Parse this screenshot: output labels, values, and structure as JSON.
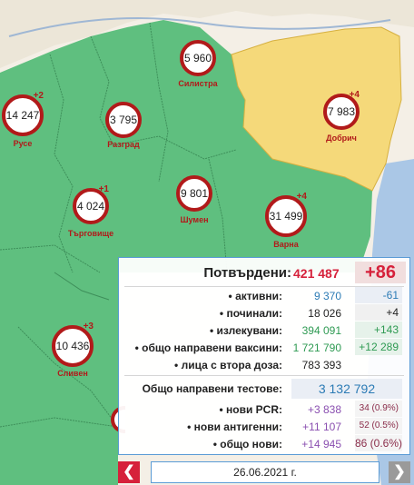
{
  "regions": [
    {
      "name": "Силистра",
      "count": "5 960",
      "delta": ""
    },
    {
      "name": "Русе",
      "count": "14 247",
      "delta": "+2"
    },
    {
      "name": "Разград",
      "count": "3 795",
      "delta": ""
    },
    {
      "name": "Добрич",
      "count": "7 983",
      "delta": "+4"
    },
    {
      "name": "Търговище",
      "count": "4 024",
      "delta": "+1"
    },
    {
      "name": "Шумен",
      "count": "9 801",
      "delta": ""
    },
    {
      "name": "Варна",
      "count": "31 499",
      "delta": "+4"
    },
    {
      "name": "Сливен",
      "count": "10 436",
      "delta": "+3"
    }
  ],
  "panel": {
    "confirmed_label": "Потвърдени:",
    "confirmed_value": "421 487",
    "confirmed_delta": "+86",
    "rows": [
      {
        "label": "• активни:",
        "value": "9 370",
        "delta": "-61"
      },
      {
        "label": "• починали:",
        "value": "18 026",
        "delta": "+4"
      },
      {
        "label": "• излекувани:",
        "value": "394 091",
        "delta": "+143"
      },
      {
        "label": "• общо направени ваксини:",
        "value": "1 721 790",
        "delta": "+12 289"
      },
      {
        "label": "• лица с втора доза:",
        "value": "783 393",
        "delta": ""
      }
    ],
    "tests_label": "Общо направени тестове:",
    "tests_value": "3 132 792",
    "test_rows": [
      {
        "label": "• нови PCR:",
        "value": "+3 838",
        "delta": "34 (0.9%)"
      },
      {
        "label": "• нови антигенни:",
        "value": "+11 107",
        "delta": "52 (0.5%)"
      },
      {
        "label": "• общо нови:",
        "value": "+14 945",
        "delta": "86 (0.6%)"
      }
    ]
  },
  "footer": {
    "date": "26.06.2021 г.",
    "prev_icon": "chevron-left-icon",
    "next_icon": "chevron-right-icon"
  },
  "colors": {
    "region_fill": "#5fbf7f",
    "highlight_fill": "#f5d97a",
    "marker_ring": "#b11a1a",
    "sea": "#aac7e6",
    "accent": "#d6213b"
  }
}
